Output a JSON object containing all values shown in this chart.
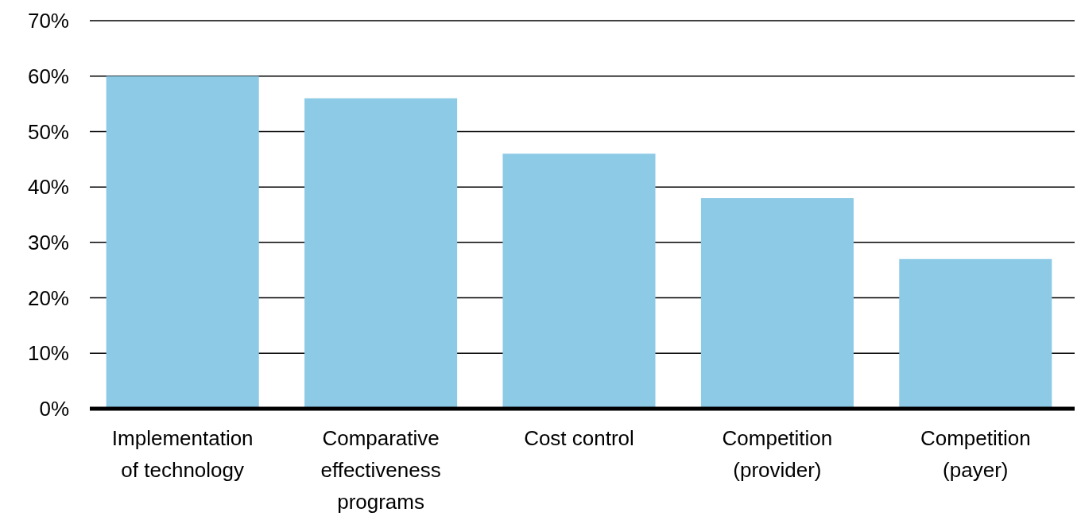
{
  "chart_data": {
    "type": "bar",
    "categories": [
      "Implementation of technology",
      "Comparative effectiveness programs",
      "Cost control",
      "Competition (provider)",
      "Competition (payer)"
    ],
    "values": [
      60,
      56,
      46,
      38,
      27
    ],
    "color": "#8ccae6",
    "ylim": [
      0,
      70
    ],
    "yticks": [
      {
        "value": 0,
        "label": "0%"
      },
      {
        "value": 10,
        "label": "10%"
      },
      {
        "value": 20,
        "label": "20%"
      },
      {
        "value": 30,
        "label": "30%"
      },
      {
        "value": 40,
        "label": "40%"
      },
      {
        "value": 50,
        "label": "50%"
      },
      {
        "value": 60,
        "label": "60%"
      },
      {
        "value": 70,
        "label": "70%"
      }
    ],
    "grid": "y"
  }
}
